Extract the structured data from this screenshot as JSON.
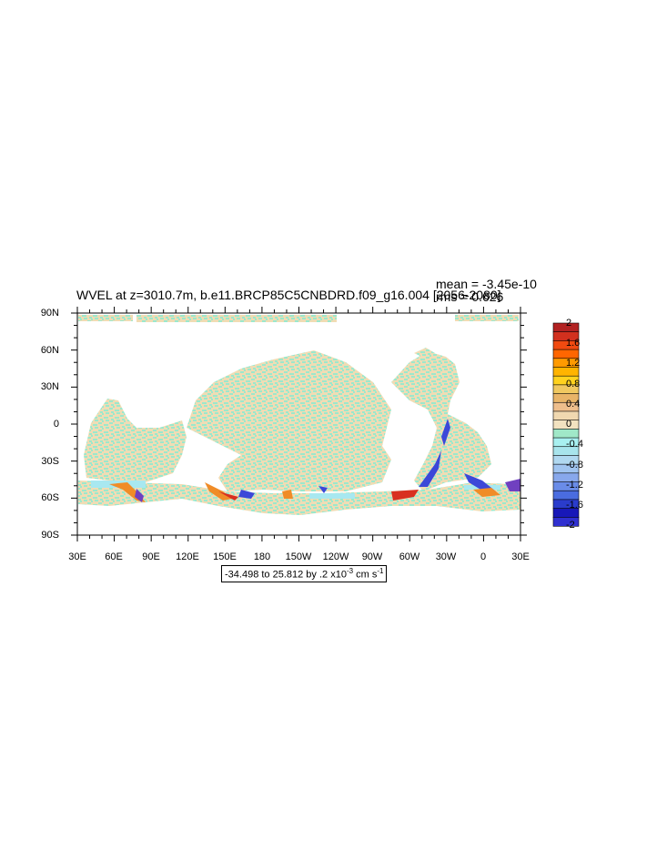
{
  "title": "WVEL at z=3010.7m, b.e11.BRCP85C5CNBDRD.f09_g16.004 [2056-2080]",
  "stats": {
    "mean": "mean = -3.45e-10",
    "rms": "rms = 0.626"
  },
  "axes": {
    "lat_labels": [
      "90N",
      "60N",
      "30N",
      "0",
      "30S",
      "60S",
      "90S"
    ],
    "lon_labels": [
      "30E",
      "60E",
      "90E",
      "120E",
      "150E",
      "180",
      "150W",
      "120W",
      "90W",
      "60W",
      "30W",
      "0",
      "30E"
    ]
  },
  "colorbar": {
    "labels": [
      "2",
      "1.6",
      "1.2",
      "0.8",
      "0.4",
      "0",
      "-0.4",
      "-0.8",
      "-1.2",
      "-1.6",
      "-2"
    ],
    "colors": [
      "#b22222",
      "#d2301e",
      "#f04a10",
      "#ff6600",
      "#ff9a00",
      "#ffb400",
      "#ffd21e",
      "#f0c860",
      "#e8b468",
      "#eebe8c",
      "#f0d8b0",
      "#f2e2c0",
      "#a0e8c8",
      "#a8f0f0",
      "#a8e4ec",
      "#b0d8f0",
      "#a0c4f0",
      "#88a8ec",
      "#6a8ce8",
      "#4a6ce0",
      "#2a3ccc",
      "#1818b8",
      "#3030d0"
    ]
  },
  "range_box": {
    "text": "-34.498 to 25.812 by .2 x10",
    "exp": "-3",
    "unit": " cm s",
    "unit_exp": "-1"
  },
  "map_colors": {
    "land": "#ffffff",
    "neutral_pos": "#f0dcb4",
    "neutral_neg": "#9ce8cc",
    "light_blue": "#a8e8f0",
    "orange": "#f08c28",
    "red": "#d83020",
    "blue": "#3c48d8",
    "purple": "#7040c0"
  }
}
